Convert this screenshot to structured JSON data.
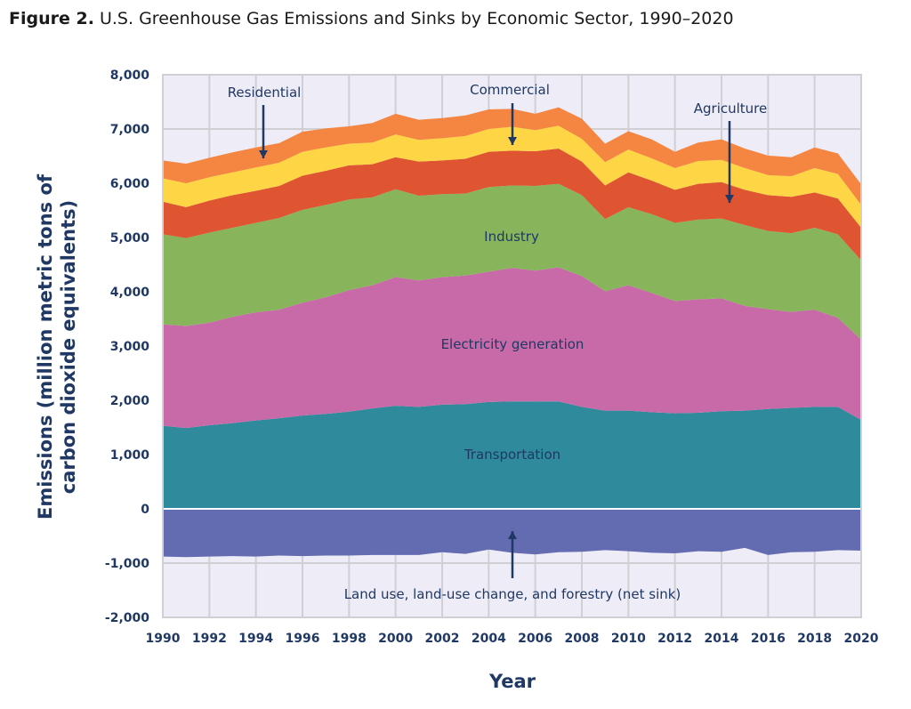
{
  "figure_label": "Figure 2.",
  "figure_title": "U.S. Greenhouse Gas Emissions and Sinks by Economic Sector, 1990–2020",
  "chart_data": {
    "type": "area",
    "stacked": true,
    "xlabel": "Year",
    "ylabel_lines": [
      "Emissions (million metric tons of",
      "carbon dioxide equivalents)"
    ],
    "xlim": [
      1990,
      2020
    ],
    "ylim": [
      -2000,
      8000
    ],
    "x_ticks": [
      1990,
      1992,
      1994,
      1996,
      1998,
      2000,
      2002,
      2004,
      2006,
      2008,
      2010,
      2012,
      2014,
      2016,
      2018,
      2020
    ],
    "y_ticks": [
      -2000,
      -1000,
      0,
      1000,
      2000,
      3000,
      4000,
      5000,
      6000,
      7000,
      8000
    ],
    "y_tick_labels": [
      "-2,000",
      "-1,000",
      "0",
      "1,000",
      "2,000",
      "3,000",
      "4,000",
      "5,000",
      "6,000",
      "7,000",
      "8,000"
    ],
    "grid": true,
    "x": [
      1990,
      1991,
      1992,
      1993,
      1994,
      1995,
      1996,
      1997,
      1998,
      1999,
      2000,
      2001,
      2002,
      2003,
      2004,
      2005,
      2006,
      2007,
      2008,
      2009,
      2010,
      2011,
      2012,
      2013,
      2014,
      2015,
      2016,
      2017,
      2018,
      2019,
      2020
    ],
    "series": [
      {
        "name": "Transportation",
        "color": "#2f8a9b",
        "values": [
          1530,
          1490,
          1540,
          1580,
          1630,
          1670,
          1720,
          1750,
          1790,
          1850,
          1900,
          1880,
          1920,
          1930,
          1970,
          1980,
          1980,
          1980,
          1880,
          1810,
          1810,
          1780,
          1760,
          1770,
          1800,
          1810,
          1840,
          1860,
          1880,
          1880,
          1640
        ]
      },
      {
        "name": "Electricity generation",
        "color": "#c96aa8",
        "values": [
          1870,
          1880,
          1890,
          1960,
          1990,
          2000,
          2080,
          2150,
          2240,
          2270,
          2370,
          2330,
          2350,
          2370,
          2400,
          2460,
          2410,
          2470,
          2410,
          2200,
          2310,
          2200,
          2070,
          2090,
          2080,
          1930,
          1840,
          1770,
          1790,
          1640,
          1480
        ]
      },
      {
        "name": "Industry",
        "color": "#88b55c",
        "values": [
          1660,
          1620,
          1660,
          1640,
          1650,
          1690,
          1710,
          1700,
          1670,
          1620,
          1620,
          1560,
          1530,
          1510,
          1560,
          1520,
          1560,
          1540,
          1490,
          1330,
          1440,
          1450,
          1440,
          1470,
          1470,
          1490,
          1440,
          1450,
          1510,
          1540,
          1460
        ]
      },
      {
        "name": "Agriculture",
        "color": "#df5431",
        "values": [
          600,
          570,
          590,
          600,
          590,
          590,
          630,
          630,
          630,
          610,
          590,
          630,
          620,
          640,
          650,
          640,
          640,
          650,
          620,
          620,
          640,
          620,
          610,
          660,
          670,
          650,
          660,
          670,
          650,
          660,
          600
        ]
      },
      {
        "name": "Commercial",
        "color": "#fed544",
        "values": [
          430,
          440,
          430,
          420,
          430,
          430,
          440,
          430,
          400,
          400,
          420,
          400,
          410,
          420,
          420,
          440,
          390,
          420,
          420,
          430,
          420,
          410,
          400,
          420,
          410,
          400,
          370,
          380,
          450,
          450,
          420
        ]
      },
      {
        "name": "Residential",
        "color": "#f48642",
        "values": [
          330,
          360,
          360,
          370,
          370,
          360,
          370,
          350,
          320,
          360,
          380,
          370,
          370,
          380,
          360,
          330,
          300,
          340,
          370,
          340,
          340,
          350,
          300,
          340,
          380,
          360,
          360,
          350,
          380,
          380,
          380
        ]
      }
    ],
    "sink_series": {
      "name": "Land use, land-use change, and forestry (net sink)",
      "color": "#636bb1",
      "values": [
        -880,
        -890,
        -880,
        -870,
        -880,
        -860,
        -870,
        -860,
        -860,
        -850,
        -850,
        -850,
        -800,
        -830,
        -750,
        -810,
        -840,
        -800,
        -790,
        -760,
        -780,
        -810,
        -820,
        -780,
        -790,
        -720,
        -850,
        -800,
        -790,
        -760,
        -770
      ]
    },
    "annotations": [
      {
        "text": "Residential",
        "arrow": "down"
      },
      {
        "text": "Commercial",
        "arrow": "down"
      },
      {
        "text": "Agriculture",
        "arrow": "down"
      },
      {
        "text": "Industry"
      },
      {
        "text": "Electricity generation"
      },
      {
        "text": "Transportation"
      },
      {
        "text": "Land use, land-use change, and forestry (net sink)",
        "arrow": "up"
      }
    ],
    "background_color": "#eeecf6",
    "text_color": "#1f3864"
  }
}
